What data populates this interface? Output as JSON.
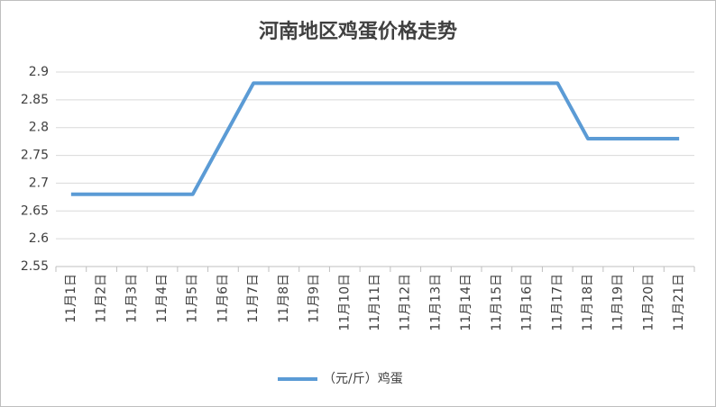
{
  "chart_data": {
    "type": "line",
    "title": "河南地区鸡蛋价格走势",
    "categories": [
      "11月1日",
      "11月2日",
      "11月3日",
      "11月4日",
      "11月5日",
      "11月6日",
      "11月7日",
      "11月8日",
      "11月9日",
      "11月10日",
      "11月11日",
      "11月12日",
      "11月13日",
      "11月14日",
      "11月15日",
      "11月16日",
      "11月17日",
      "11月18日",
      "11月19日",
      "11月20日",
      "11月21日"
    ],
    "series": [
      {
        "name": "（元/斤）鸡蛋",
        "color": "#5b9bd5",
        "values": [
          2.68,
          2.68,
          2.68,
          2.68,
          2.68,
          2.78,
          2.88,
          2.88,
          2.88,
          2.88,
          2.88,
          2.88,
          2.88,
          2.88,
          2.88,
          2.88,
          2.88,
          2.78,
          2.78,
          2.78,
          2.78
        ]
      }
    ],
    "ylim": [
      2.55,
      2.9
    ],
    "yticks": [
      2.55,
      2.6,
      2.65,
      2.7,
      2.75,
      2.8,
      2.85,
      2.9
    ],
    "grid": true,
    "legend": "bottom"
  }
}
